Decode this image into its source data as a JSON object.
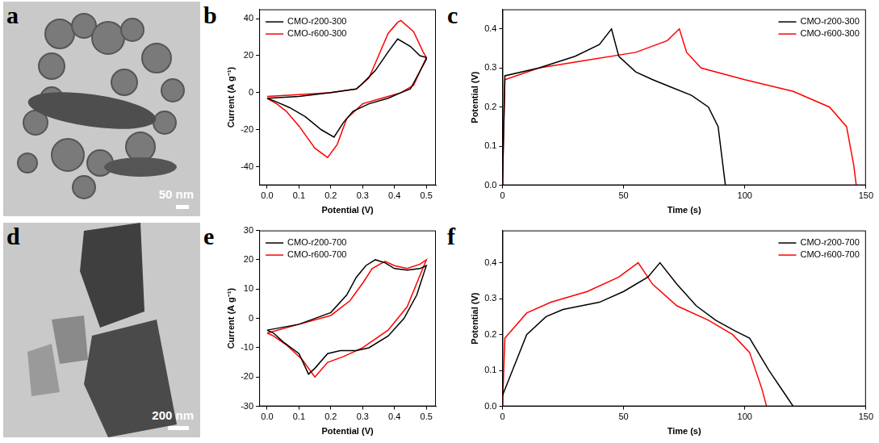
{
  "images": [
    {
      "panel_label": "a",
      "scale_bar": "50 nm"
    },
    {
      "panel_label": "d",
      "scale_bar": "200 nm"
    }
  ],
  "chart_data": [
    {
      "type": "line",
      "panel_label": "b",
      "x_label": "Potential (V)",
      "y_label": "Current (A g⁻¹)",
      "xlim": [
        -0.025,
        0.53
      ],
      "xticks": [
        {
          "value": 0,
          "label": "0.0"
        },
        0.1,
        0.2,
        0.3,
        0.4,
        0.5
      ],
      "ylim": [
        -50,
        45
      ],
      "yticks": [
        -40,
        -20,
        0,
        20,
        40
      ],
      "grid": false,
      "legend": "upper left",
      "series": [
        {
          "name": "CMO-r200-300",
          "color": "#000000",
          "x": [
            0,
            0.1,
            0.2,
            0.28,
            0.3,
            0.34,
            0.38,
            0.41,
            0.45,
            0.48,
            0.5,
            0.5,
            0.45,
            0.42,
            0.38,
            0.32,
            0.27,
            0.24,
            0.21,
            0.17,
            0.12,
            0.07,
            0.03,
            0
          ],
          "values": [
            -3,
            -2,
            0,
            2,
            5,
            12,
            22,
            29,
            25,
            20,
            19,
            18,
            2,
            0,
            -3,
            -6,
            -10,
            -16,
            -24,
            -20,
            -13,
            -8,
            -5,
            -3
          ]
        },
        {
          "name": "CMO-r600-300",
          "color": "#ff0000",
          "x": [
            0,
            0.1,
            0.2,
            0.28,
            0.32,
            0.35,
            0.38,
            0.41,
            0.42,
            0.46,
            0.49,
            0.5,
            0.5,
            0.46,
            0.42,
            0.36,
            0.3,
            0.25,
            0.22,
            0.19,
            0.15,
            0.1,
            0.06,
            0.03,
            0
          ],
          "values": [
            -2,
            -1,
            0,
            2,
            8,
            20,
            32,
            38,
            39,
            33,
            22,
            19,
            19,
            4,
            0,
            -3,
            -6,
            -14,
            -28,
            -35,
            -30,
            -18,
            -10,
            -6,
            -3
          ]
        }
      ]
    },
    {
      "type": "line",
      "panel_label": "c",
      "x_label": "Time (s)",
      "y_label": "Potential (V)",
      "xlim": [
        0,
        150
      ],
      "xticks": [
        0,
        50,
        100,
        150
      ],
      "ylim": [
        0,
        0.45
      ],
      "yticks": [
        {
          "value": 0,
          "label": "0.0"
        },
        0.1,
        0.2,
        0.3,
        0.4
      ],
      "grid": false,
      "legend": "upper right",
      "series": [
        {
          "name": "CMO-r200-300",
          "color": "#000000",
          "x": [
            0,
            1,
            15,
            30,
            40,
            45,
            48,
            55,
            62,
            70,
            78,
            85,
            89,
            91,
            92
          ],
          "values": [
            0,
            0.28,
            0.3,
            0.33,
            0.36,
            0.4,
            0.33,
            0.29,
            0.27,
            0.25,
            0.23,
            0.2,
            0.15,
            0.05,
            0
          ]
        },
        {
          "name": "CMO-r600-300",
          "color": "#ff0000",
          "x": [
            0,
            1,
            15,
            35,
            55,
            68,
            73,
            76,
            82,
            100,
            120,
            135,
            142,
            145,
            146
          ],
          "values": [
            0,
            0.27,
            0.3,
            0.32,
            0.34,
            0.37,
            0.4,
            0.34,
            0.3,
            0.27,
            0.24,
            0.2,
            0.15,
            0.05,
            0
          ]
        }
      ]
    },
    {
      "type": "line",
      "panel_label": "e",
      "x_label": "Potential (V)",
      "y_label": "Current (A g⁻¹)",
      "xlim": [
        -0.025,
        0.53
      ],
      "xticks": [
        {
          "value": 0,
          "label": "0.0"
        },
        0.1,
        0.2,
        0.3,
        0.4,
        0.5
      ],
      "ylim": [
        -30,
        30
      ],
      "yticks": [
        -30,
        -20,
        -10,
        0,
        10,
        20,
        30
      ],
      "grid": false,
      "legend": "upper left",
      "series": [
        {
          "name": "CMO-r200-700",
          "color": "#000000",
          "x": [
            0,
            0.1,
            0.2,
            0.25,
            0.28,
            0.31,
            0.34,
            0.37,
            0.4,
            0.44,
            0.48,
            0.5,
            0.5,
            0.47,
            0.43,
            0.38,
            0.32,
            0.28,
            0.23,
            0.19,
            0.15,
            0.13,
            0.1,
            0.05,
            0.02,
            0
          ],
          "values": [
            -4,
            -2,
            2,
            8,
            14,
            18,
            20,
            19,
            17,
            16.5,
            17,
            18,
            18,
            8,
            0,
            -6,
            -10,
            -11,
            -11,
            -12,
            -17,
            -19,
            -12,
            -8,
            -5,
            -4
          ]
        },
        {
          "name": "CMO-r600-700",
          "color": "#ff0000",
          "x": [
            0,
            0.1,
            0.2,
            0.26,
            0.3,
            0.33,
            0.37,
            0.4,
            0.44,
            0.48,
            0.5,
            0.5,
            0.47,
            0.44,
            0.38,
            0.3,
            0.24,
            0.19,
            0.15,
            0.11,
            0.06,
            0.02,
            0
          ],
          "values": [
            -5,
            -2,
            1,
            6,
            12,
            17,
            19.5,
            18,
            17,
            18.5,
            20,
            20,
            12,
            4,
            -4,
            -10,
            -13,
            -15,
            -20,
            -14,
            -9,
            -6,
            -5
          ]
        }
      ]
    },
    {
      "type": "line",
      "panel_label": "f",
      "x_label": "Time (s)",
      "y_label": "Potential (V)",
      "xlim": [
        0,
        150
      ],
      "xticks": [
        0,
        50,
        100,
        150
      ],
      "ylim": [
        0,
        0.49
      ],
      "yticks": [
        {
          "value": 0,
          "label": "0.0"
        },
        0.1,
        0.2,
        0.3,
        0.4
      ],
      "grid": false,
      "legend": "upper right",
      "series": [
        {
          "name": "CMO-r200-700",
          "color": "#000000",
          "x": [
            0,
            10,
            18,
            25,
            40,
            50,
            60,
            65,
            72,
            80,
            88,
            96,
            102,
            110,
            117,
            120
          ],
          "values": [
            0.03,
            0.2,
            0.25,
            0.27,
            0.29,
            0.32,
            0.36,
            0.4,
            0.34,
            0.28,
            0.24,
            0.21,
            0.19,
            0.1,
            0.03,
            0
          ]
        },
        {
          "name": "CMO-r600-700",
          "color": "#ff0000",
          "x": [
            0,
            1,
            10,
            20,
            35,
            48,
            56,
            62,
            72,
            85,
            95,
            102,
            107,
            109
          ],
          "values": [
            0,
            0.19,
            0.26,
            0.29,
            0.32,
            0.36,
            0.4,
            0.34,
            0.28,
            0.24,
            0.2,
            0.15,
            0.05,
            0
          ]
        }
      ]
    }
  ]
}
